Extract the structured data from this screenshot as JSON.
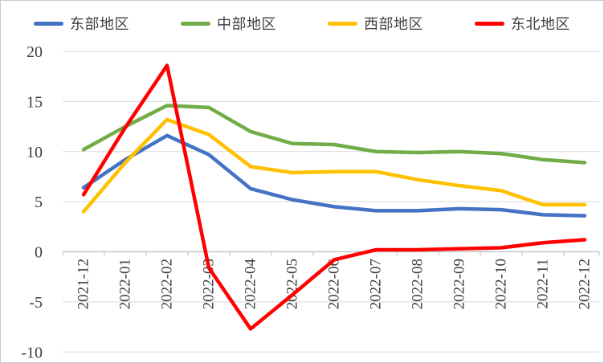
{
  "colors": {
    "background": "#FFFFFF",
    "gridline": "#D9D9D9",
    "axis": "#BFBFBF",
    "tick_text": "#404040",
    "legend_text": "#404040"
  },
  "chart_data": {
    "type": "line",
    "title": "",
    "xlabel": "",
    "ylabel": "",
    "x": [
      "2021-12",
      "2022-01",
      "2022-02",
      "2022-03",
      "2022-04",
      "2022-05",
      "2022-06",
      "2022-07",
      "2022-08",
      "2022-09",
      "2022-10",
      "2022-11",
      "2022-12"
    ],
    "series": [
      {
        "name": "东部地区",
        "key": "east",
        "color": "#4472C4",
        "values": [
          6.4,
          9.2,
          11.6,
          9.7,
          6.3,
          5.2,
          4.5,
          4.1,
          4.1,
          4.3,
          4.2,
          3.7,
          3.6
        ]
      },
      {
        "name": "中部地区",
        "key": "central",
        "color": "#70AD47",
        "values": [
          10.2,
          12.5,
          14.6,
          14.4,
          12.0,
          10.8,
          10.7,
          10.0,
          9.9,
          10.0,
          9.8,
          9.2,
          8.9
        ]
      },
      {
        "name": "西部地区",
        "key": "west",
        "color": "#FFC000",
        "values": [
          4.0,
          8.9,
          13.2,
          11.7,
          8.5,
          7.9,
          8.0,
          8.0,
          7.2,
          6.6,
          6.1,
          4.7,
          4.7
        ]
      },
      {
        "name": "东北地区",
        "key": "northeast",
        "color": "#FF0000",
        "values": [
          5.7,
          12.4,
          18.6,
          -1.6,
          -7.7,
          -4.3,
          -0.8,
          0.2,
          0.2,
          0.3,
          0.4,
          0.9,
          1.2
        ]
      }
    ],
    "ylim": [
      -10,
      20
    ],
    "yticks": [
      20,
      15,
      10,
      5,
      0,
      -5,
      -10
    ],
    "grid": true,
    "legend_position": "top"
  }
}
